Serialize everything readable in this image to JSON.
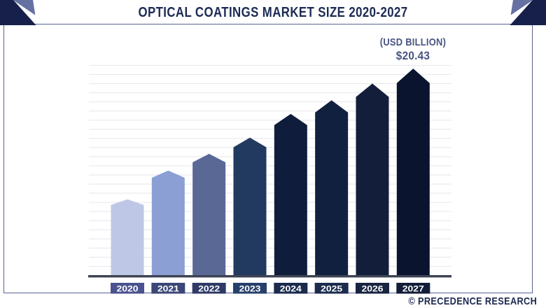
{
  "header": {
    "title": "OPTICAL COATINGS MARKET SIZE 2020-2027"
  },
  "chart": {
    "unit_label": "(USD BILLION)",
    "top_value_label": "$20.43"
  },
  "footer": {
    "copyright": "© PRECEDENCE RESEARCH"
  },
  "chart_data": {
    "type": "bar",
    "title": "Optical Coatings Market Size 2020-2027",
    "unit": "USD Billion",
    "categories": [
      "2020",
      "2021",
      "2022",
      "2023",
      "2024",
      "2025",
      "2026",
      "2027"
    ],
    "values": [
      7.5,
      10.35,
      12.0,
      13.6,
      15.95,
      17.3,
      18.95,
      20.43
    ],
    "labeled_value": {
      "category": "2027",
      "text": "$20.43"
    },
    "ylim": [
      0,
      21
    ],
    "grid": "horizontal",
    "legend": "none",
    "bar_colors": [
      "#bec8e6",
      "#8b9fd4",
      "#5a6896",
      "#223a60",
      "#101c3c",
      "#12203f",
      "#131e3b",
      "#0a142e"
    ],
    "year_label_colors": [
      "#4a5390",
      "#3c4677",
      "#2f3a67",
      "#26406a",
      "#1b2b4d",
      "#1c2c4f",
      "#182440",
      "#121d38"
    ]
  },
  "colors": {
    "title_text": "#1c2b55",
    "value_text": "#495482",
    "axis_line": "#3d4353",
    "gridline": "#e6e6ed",
    "frame_border": "#5a6390",
    "corner_dark": "#16204a",
    "corner_slate": "#6671a3",
    "year_text": "#ffffff",
    "background": "#ffffff"
  }
}
